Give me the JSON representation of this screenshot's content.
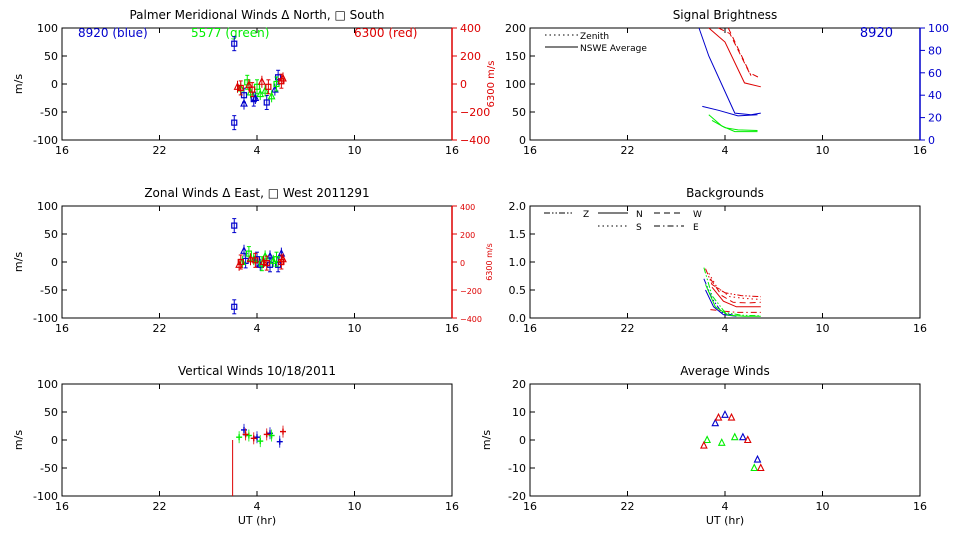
{
  "colors": {
    "axis": "#000000",
    "blue": "#0000cc",
    "green": "#00ee00",
    "red": "#dd0000"
  },
  "panel_labels": {
    "left_ylabel": "m/s",
    "xlabel": "UT (hr)"
  },
  "x_ticks": [
    "16",
    "22",
    "4",
    "10",
    "16"
  ],
  "chart_data": [
    {
      "id": "meridional",
      "type": "scatter",
      "title": "Palmer Meridional Winds Δ North, □ South",
      "ylabel": "m/s",
      "ylim": [
        -100,
        100
      ],
      "yticks": [
        "100",
        "50",
        "0",
        "-50",
        "-100"
      ],
      "yvals": [
        100,
        50,
        0,
        -50,
        -100
      ],
      "y2label": "6300 m/s",
      "y2ticks": [
        "400",
        "200",
        "0",
        "−200",
        "−400"
      ],
      "y2vals": [
        400,
        200,
        0,
        -200,
        -400
      ],
      "legend": {
        "blue": "8920 (blue)",
        "green": "5577 (green)",
        "red": "6300 (red)"
      },
      "series": [
        {
          "name": "8920",
          "color": "blue",
          "marker": "square",
          "x": [
            26.6,
            26.6,
            27.2,
            27.8,
            28.6,
            29.3
          ],
          "y": [
            72,
            -69,
            -20,
            -27,
            -33,
            12
          ]
        },
        {
          "name": "8920",
          "color": "blue",
          "marker": "triangle",
          "x": [
            27.2,
            27.9,
            29.1
          ],
          "y": [
            -35,
            -25,
            -10
          ]
        },
        {
          "name": "5577",
          "color": "green",
          "marker": "triangle",
          "x": [
            27.0,
            27.6,
            28.2,
            28.5,
            28.9
          ],
          "y": [
            -8,
            -15,
            -18,
            -12,
            -22
          ]
        },
        {
          "name": "5577",
          "color": "green",
          "marker": "square",
          "x": [
            27.4,
            28.0,
            29.2
          ],
          "y": [
            3,
            -5,
            0
          ]
        },
        {
          "name": "6300",
          "color": "red",
          "marker": "triangle",
          "x": [
            26.8,
            27.5,
            28.3,
            29.6
          ],
          "y": [
            -5,
            -2,
            4,
            10
          ]
        },
        {
          "name": "6300",
          "color": "red",
          "marker": "square",
          "x": [
            27.0,
            27.7,
            28.7,
            29.5
          ],
          "y": [
            -7,
            -10,
            -5,
            5
          ]
        }
      ]
    },
    {
      "id": "brightness",
      "type": "line",
      "title": "Signal Brightness",
      "ylim": [
        0,
        200
      ],
      "yticks": [
        "200",
        "150",
        "100",
        "50",
        "0"
      ],
      "yvals": [
        200,
        150,
        100,
        50,
        0
      ],
      "y2ticks": [
        "100",
        "80",
        "60",
        "40",
        "20",
        "0"
      ],
      "y2vals": [
        100,
        80,
        60,
        40,
        20,
        0
      ],
      "legend": {
        "label8920": "8920",
        "zenith": "Zenith",
        "avg": "NSWE Average"
      },
      "series": [
        {
          "name": "6300 average",
          "color": "red",
          "style": "solid",
          "x": [
            27.0,
            28.0,
            29.2,
            30.2
          ],
          "y": [
            200,
            175,
            102,
            95
          ]
        },
        {
          "name": "6300 zenith",
          "color": "red",
          "style": "dash",
          "x": [
            27.6,
            28.3,
            29.5,
            30.2
          ],
          "y": [
            200,
            190,
            120,
            110
          ]
        },
        {
          "name": "6300 zenith b",
          "color": "red",
          "style": "dash",
          "x": [
            28.2,
            29.6
          ],
          "y": [
            200,
            115
          ]
        },
        {
          "name": "8920 average",
          "color": "blue",
          "style": "solid",
          "x": [
            26.4,
            27.0,
            28.6,
            29.6,
            30.2
          ],
          "y": [
            200,
            150,
            48,
            45,
            48
          ]
        },
        {
          "name": "8920 zenith",
          "color": "blue",
          "style": "solid",
          "x": [
            26.6,
            27.6,
            28.8,
            30.0
          ],
          "y": [
            60,
            53,
            43,
            45
          ]
        },
        {
          "name": "5577 average",
          "color": "green",
          "style": "solid",
          "x": [
            27.0,
            27.8,
            28.6,
            30.0
          ],
          "y": [
            45,
            25,
            15,
            15
          ]
        },
        {
          "name": "5577 zenith",
          "color": "green",
          "style": "solid",
          "x": [
            27.2,
            28.0,
            28.8,
            30.0
          ],
          "y": [
            35,
            22,
            18,
            17
          ]
        }
      ]
    },
    {
      "id": "zonal",
      "type": "scatter",
      "title": "Zonal Winds Δ East, □ West 2011291",
      "ylabel": "m/s",
      "ylim": [
        -100,
        100
      ],
      "yticks": [
        "100",
        "50",
        "0",
        "-50",
        "-100"
      ],
      "yvals": [
        100,
        50,
        0,
        -50,
        -100
      ],
      "y2label": "6300 m/s",
      "y2ticks": [
        "400",
        "200",
        "0",
        "−200",
        "−400"
      ],
      "y2vals": [
        400,
        200,
        0,
        -200,
        -400
      ],
      "series": [
        {
          "name": "8920",
          "color": "blue",
          "marker": "square",
          "x": [
            26.6,
            26.6,
            27.3,
            28.0,
            28.8,
            29.3
          ],
          "y": [
            65,
            -80,
            2,
            5,
            -5,
            -5
          ]
        },
        {
          "name": "8920",
          "color": "blue",
          "marker": "triangle",
          "x": [
            27.2,
            28.2,
            28.8,
            29.5
          ],
          "y": [
            20,
            -5,
            10,
            15
          ]
        },
        {
          "name": "5577",
          "color": "green",
          "marker": "triangle",
          "x": [
            27.1,
            27.8,
            28.5,
            29.0
          ],
          "y": [
            0,
            5,
            10,
            2
          ]
        },
        {
          "name": "5577",
          "color": "green",
          "marker": "square",
          "x": [
            27.5,
            28.3,
            29.2
          ],
          "y": [
            15,
            -3,
            5
          ]
        },
        {
          "name": "6300",
          "color": "red",
          "marker": "triangle",
          "x": [
            26.9,
            27.6,
            28.4,
            29.6
          ],
          "y": [
            -5,
            5,
            0,
            5
          ]
        },
        {
          "name": "6300",
          "color": "red",
          "marker": "square",
          "x": [
            27.0,
            27.9,
            28.6,
            29.5
          ],
          "y": [
            0,
            3,
            -2,
            0
          ]
        }
      ]
    },
    {
      "id": "backgrounds",
      "type": "line",
      "title": "Backgrounds",
      "ylim": [
        0,
        2.0
      ],
      "yticks": [
        "2.0",
        "1.5",
        "1.0",
        "0.5",
        "0.0"
      ],
      "yvals": [
        2.0,
        1.5,
        1.0,
        0.5,
        0.0
      ],
      "legend": {
        "z": "Z",
        "n": "N",
        "w": "W",
        "s": "S",
        "e": "E"
      },
      "series": [
        {
          "name": "red Z",
          "color": "red",
          "style": "dashdotdot",
          "x": [
            26.8,
            27.2,
            28.0,
            29.0,
            30.2
          ],
          "y": [
            0.88,
            0.6,
            0.45,
            0.4,
            0.38
          ]
        },
        {
          "name": "red S",
          "color": "red",
          "style": "dot",
          "x": [
            27.0,
            27.5,
            28.3,
            29.2,
            30.2
          ],
          "y": [
            0.8,
            0.55,
            0.38,
            0.35,
            0.33
          ]
        },
        {
          "name": "red W",
          "color": "red",
          "style": "dash",
          "x": [
            27.1,
            27.8,
            28.5,
            29.4,
            30.2
          ],
          "y": [
            0.7,
            0.4,
            0.28,
            0.27,
            0.28
          ]
        },
        {
          "name": "red N",
          "color": "red",
          "style": "solid",
          "x": [
            27.2,
            27.9,
            28.7,
            29.6,
            30.2
          ],
          "y": [
            0.55,
            0.3,
            0.2,
            0.2,
            0.2
          ]
        },
        {
          "name": "red E",
          "color": "red",
          "style": "dashdot",
          "x": [
            27.1,
            28.0,
            28.8,
            30.2
          ],
          "y": [
            0.15,
            0.12,
            0.1,
            0.1
          ]
        },
        {
          "name": "blue Z",
          "color": "blue",
          "style": "dashdotdot",
          "x": [
            26.7,
            27.2,
            27.8,
            28.5
          ],
          "y": [
            0.7,
            0.35,
            0.1,
            0.05
          ]
        },
        {
          "name": "blue N",
          "color": "blue",
          "style": "solid",
          "x": [
            26.8,
            27.3,
            27.9,
            28.7
          ],
          "y": [
            0.5,
            0.2,
            0.06,
            0.03
          ]
        },
        {
          "name": "green Z",
          "color": "green",
          "style": "dashdotdot",
          "x": [
            26.7,
            27.2,
            28.0,
            29.0,
            30.2
          ],
          "y": [
            0.9,
            0.4,
            0.1,
            0.05,
            0.04
          ]
        },
        {
          "name": "green N",
          "color": "green",
          "style": "solid",
          "x": [
            26.8,
            27.4,
            28.2,
            29.2,
            30.2
          ],
          "y": [
            0.6,
            0.2,
            0.05,
            0.03,
            0.03
          ]
        }
      ]
    },
    {
      "id": "vertical",
      "type": "scatter",
      "title": "Vertical Winds 10/18/2011",
      "ylabel": "m/s",
      "ylim": [
        -100,
        100
      ],
      "yticks": [
        "100",
        "50",
        "0",
        "-50",
        "-100"
      ],
      "yvals": [
        100,
        50,
        0,
        -50,
        -100
      ],
      "series": [
        {
          "name": "8920",
          "color": "blue",
          "marker": "star",
          "x": [
            27.2,
            28.0,
            28.8,
            29.4
          ],
          "y": [
            18,
            5,
            12,
            -3
          ]
        },
        {
          "name": "5577",
          "color": "green",
          "marker": "star",
          "x": [
            26.9,
            27.5,
            28.2,
            28.9
          ],
          "y": [
            5,
            8,
            -2,
            8
          ]
        },
        {
          "name": "6300",
          "color": "red",
          "marker": "star",
          "x": [
            27.3,
            27.8,
            28.6,
            29.6
          ],
          "y": [
            10,
            3,
            10,
            15
          ]
        }
      ],
      "vline": {
        "x": 26.5,
        "y0": 0,
        "y1": -100
      }
    },
    {
      "id": "average",
      "type": "scatter",
      "title": "Average Winds",
      "ylabel": "m/s",
      "ylim": [
        -20,
        20
      ],
      "yticks": [
        "20",
        "10",
        "0",
        "-10",
        "-20"
      ],
      "yvals": [
        20,
        10,
        0,
        -10,
        -20
      ],
      "series": [
        {
          "name": "8920",
          "color": "blue",
          "marker": "triangle",
          "x": [
            27.4,
            28.0,
            29.1,
            30.0
          ],
          "y": [
            6,
            9,
            1,
            -7
          ]
        },
        {
          "name": "5577",
          "color": "green",
          "marker": "triangle",
          "x": [
            26.9,
            27.8,
            28.6,
            29.8
          ],
          "y": [
            0,
            -1,
            1,
            -10
          ]
        },
        {
          "name": "6300",
          "color": "red",
          "marker": "triangle",
          "x": [
            26.7,
            27.6,
            28.4,
            29.4,
            30.2
          ],
          "y": [
            -2,
            8,
            8,
            0,
            -10
          ]
        }
      ]
    }
  ]
}
